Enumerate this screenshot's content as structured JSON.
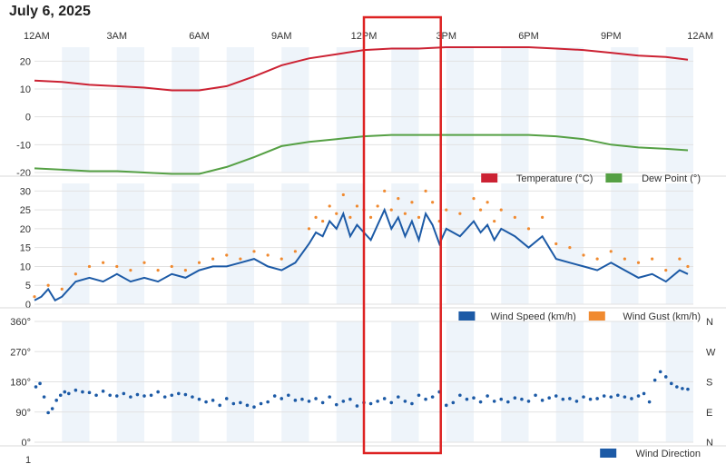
{
  "page": {
    "title": "July 6, 2025"
  },
  "x_axis": {
    "hours": [
      0,
      3,
      6,
      9,
      12,
      15,
      18,
      21,
      24
    ],
    "labels": [
      "12AM",
      "3AM",
      "6AM",
      "9AM",
      "12PM",
      "3PM",
      "6PM",
      "9PM",
      "12AM"
    ]
  },
  "highlight": {
    "from_hour": 12.0,
    "to_hour": 14.8,
    "color": "#dd2222"
  },
  "chart_data": [
    {
      "type": "line",
      "panel": "temperature",
      "x_unit": "hour of day",
      "ylim": [
        -20,
        25
      ],
      "y_ticks": [
        -20,
        -10,
        0,
        10,
        20
      ],
      "grid": true,
      "legend_placement": "bottom-right",
      "series": [
        {
          "name": "Temperature (°C)",
          "color": "#cc2233",
          "x": [
            0,
            1,
            2,
            3,
            4,
            5,
            6,
            7,
            8,
            9,
            10,
            11,
            12,
            13,
            14,
            15,
            16,
            17,
            18,
            19,
            20,
            21,
            22,
            23,
            23.8
          ],
          "y": [
            13,
            12.5,
            11.5,
            11,
            10.5,
            9.5,
            9.5,
            11,
            14.5,
            18.5,
            21,
            22.5,
            24,
            24.5,
            24.5,
            25,
            25,
            25,
            25,
            24.5,
            24,
            23,
            22,
            21.5,
            20.5
          ]
        },
        {
          "name": "Dew Point (°)",
          "color": "#55a044",
          "x": [
            0,
            1,
            2,
            3,
            4,
            5,
            6,
            7,
            8,
            9,
            10,
            11,
            12,
            13,
            14,
            15,
            16,
            17,
            18,
            19,
            20,
            21,
            22,
            23,
            23.8
          ],
          "y": [
            -18.5,
            -19,
            -19.5,
            -19.5,
            -20,
            -20.5,
            -20.5,
            -18,
            -14.5,
            -10.5,
            -9,
            -8,
            -7,
            -6.5,
            -6.5,
            -6.5,
            -6.5,
            -6.5,
            -6.5,
            -7,
            -8,
            -10,
            -11,
            -11.5,
            -12
          ]
        }
      ]
    },
    {
      "type": "line",
      "panel": "wind_speed",
      "x_unit": "hour of day",
      "ylim": [
        0,
        32
      ],
      "y_ticks": [
        0,
        5,
        10,
        15,
        20,
        25,
        30
      ],
      "grid": true,
      "legend_placement": "bottom-right",
      "series": [
        {
          "name": "Wind Speed (km/h)",
          "color": "#1c5aa6",
          "style": "line",
          "x": [
            0,
            0.25,
            0.5,
            0.75,
            1,
            1.5,
            2,
            2.5,
            3,
            3.5,
            4,
            4.5,
            5,
            5.5,
            6,
            6.5,
            7,
            7.5,
            8,
            8.5,
            9,
            9.5,
            10,
            10.25,
            10.5,
            10.75,
            11,
            11.25,
            11.5,
            11.75,
            12,
            12.25,
            12.5,
            12.75,
            13,
            13.25,
            13.5,
            13.75,
            14,
            14.25,
            14.5,
            14.75,
            15,
            15.5,
            16,
            16.25,
            16.5,
            16.75,
            17,
            17.5,
            18,
            18.5,
            19,
            19.5,
            20,
            20.5,
            21,
            21.5,
            22,
            22.5,
            23,
            23.5,
            23.8
          ],
          "y": [
            1,
            2,
            4,
            1,
            2,
            6,
            7,
            6,
            8,
            6,
            7,
            6,
            8,
            7,
            9,
            10,
            10,
            11,
            12,
            10,
            9,
            11,
            16,
            19,
            18,
            22,
            20,
            24,
            18,
            21,
            19,
            17,
            21,
            25,
            20,
            23,
            18,
            22,
            17,
            24,
            21,
            16,
            20,
            18,
            22,
            19,
            21,
            17,
            20,
            18,
            15,
            18,
            12,
            11,
            10,
            9,
            11,
            9,
            7,
            8,
            6,
            9,
            8
          ]
        },
        {
          "name": "Wind Gust (km/h)",
          "color": "#f08a30",
          "style": "dots",
          "x": [
            0,
            0.5,
            1,
            1.5,
            2,
            2.5,
            3,
            3.5,
            4,
            4.5,
            5,
            5.5,
            6,
            6.5,
            7,
            7.5,
            8,
            8.5,
            9,
            9.5,
            10,
            10.25,
            10.5,
            10.75,
            11,
            11.25,
            11.5,
            11.75,
            12,
            12.25,
            12.5,
            12.75,
            13,
            13.25,
            13.5,
            13.75,
            14,
            14.25,
            14.5,
            14.75,
            15,
            15.5,
            16,
            16.25,
            16.5,
            16.75,
            17,
            17.5,
            18,
            18.5,
            19,
            19.5,
            20,
            20.5,
            21,
            21.5,
            22,
            22.5,
            23,
            23.5,
            23.8
          ],
          "y": [
            2,
            5,
            4,
            8,
            10,
            11,
            10,
            9,
            11,
            9,
            10,
            9,
            11,
            12,
            13,
            12,
            14,
            13,
            12,
            14,
            20,
            23,
            22,
            26,
            24,
            29,
            23,
            26,
            25,
            23,
            26,
            30,
            25,
            28,
            24,
            27,
            23,
            30,
            27,
            22,
            25,
            24,
            28,
            25,
            27,
            22,
            25,
            23,
            20,
            23,
            16,
            15,
            13,
            12,
            14,
            12,
            11,
            12,
            9,
            12,
            10
          ]
        }
      ]
    },
    {
      "type": "scatter",
      "panel": "wind_direction",
      "x_unit": "hour of day",
      "ylim": [
        0,
        360
      ],
      "y_ticks": [
        0,
        90,
        180,
        270,
        360
      ],
      "y_tick_labels": [
        "0°",
        "90°",
        "180°",
        "270°",
        "360°"
      ],
      "y2_tick_labels": [
        "N",
        "E",
        "S",
        "W",
        "N"
      ],
      "grid": true,
      "legend_placement": "bottom-right",
      "series": [
        {
          "name": "Wind Direction",
          "color": "#1c5aa6",
          "x": [
            0.05,
            0.2,
            0.35,
            0.5,
            0.65,
            0.8,
            0.95,
            1.1,
            1.25,
            1.5,
            1.75,
            2,
            2.25,
            2.5,
            2.75,
            3,
            3.25,
            3.5,
            3.75,
            4,
            4.25,
            4.5,
            4.75,
            5,
            5.25,
            5.5,
            5.75,
            6,
            6.25,
            6.5,
            6.75,
            7,
            7.25,
            7.5,
            7.75,
            8,
            8.25,
            8.5,
            8.75,
            9,
            9.25,
            9.5,
            9.75,
            10,
            10.25,
            10.5,
            10.75,
            11,
            11.25,
            11.5,
            11.75,
            12,
            12.25,
            12.5,
            12.75,
            13,
            13.25,
            13.5,
            13.75,
            14,
            14.25,
            14.5,
            14.75,
            15,
            15.25,
            15.5,
            15.75,
            16,
            16.25,
            16.5,
            16.75,
            17,
            17.25,
            17.5,
            17.75,
            18,
            18.25,
            18.5,
            18.75,
            19,
            19.25,
            19.5,
            19.75,
            20,
            20.25,
            20.5,
            20.75,
            21,
            21.25,
            21.5,
            21.75,
            22,
            22.2,
            22.4,
            22.6,
            22.8,
            23,
            23.2,
            23.4,
            23.6,
            23.8
          ],
          "y": [
            165,
            175,
            135,
            88,
            100,
            125,
            140,
            150,
            145,
            155,
            150,
            148,
            140,
            152,
            140,
            138,
            145,
            135,
            142,
            138,
            140,
            150,
            135,
            140,
            145,
            142,
            135,
            128,
            120,
            125,
            110,
            130,
            115,
            118,
            110,
            105,
            115,
            120,
            138,
            130,
            140,
            125,
            128,
            122,
            130,
            118,
            135,
            112,
            122,
            128,
            108,
            118,
            115,
            122,
            130,
            118,
            135,
            122,
            115,
            140,
            128,
            135,
            150,
            110,
            118,
            140,
            128,
            132,
            120,
            138,
            122,
            128,
            120,
            132,
            128,
            122,
            140,
            125,
            132,
            138,
            128,
            130,
            122,
            135,
            128,
            130,
            138,
            135,
            140,
            135,
            130,
            138,
            145,
            120,
            185,
            210,
            195,
            175,
            165,
            160,
            158
          ]
        }
      ]
    }
  ]
}
